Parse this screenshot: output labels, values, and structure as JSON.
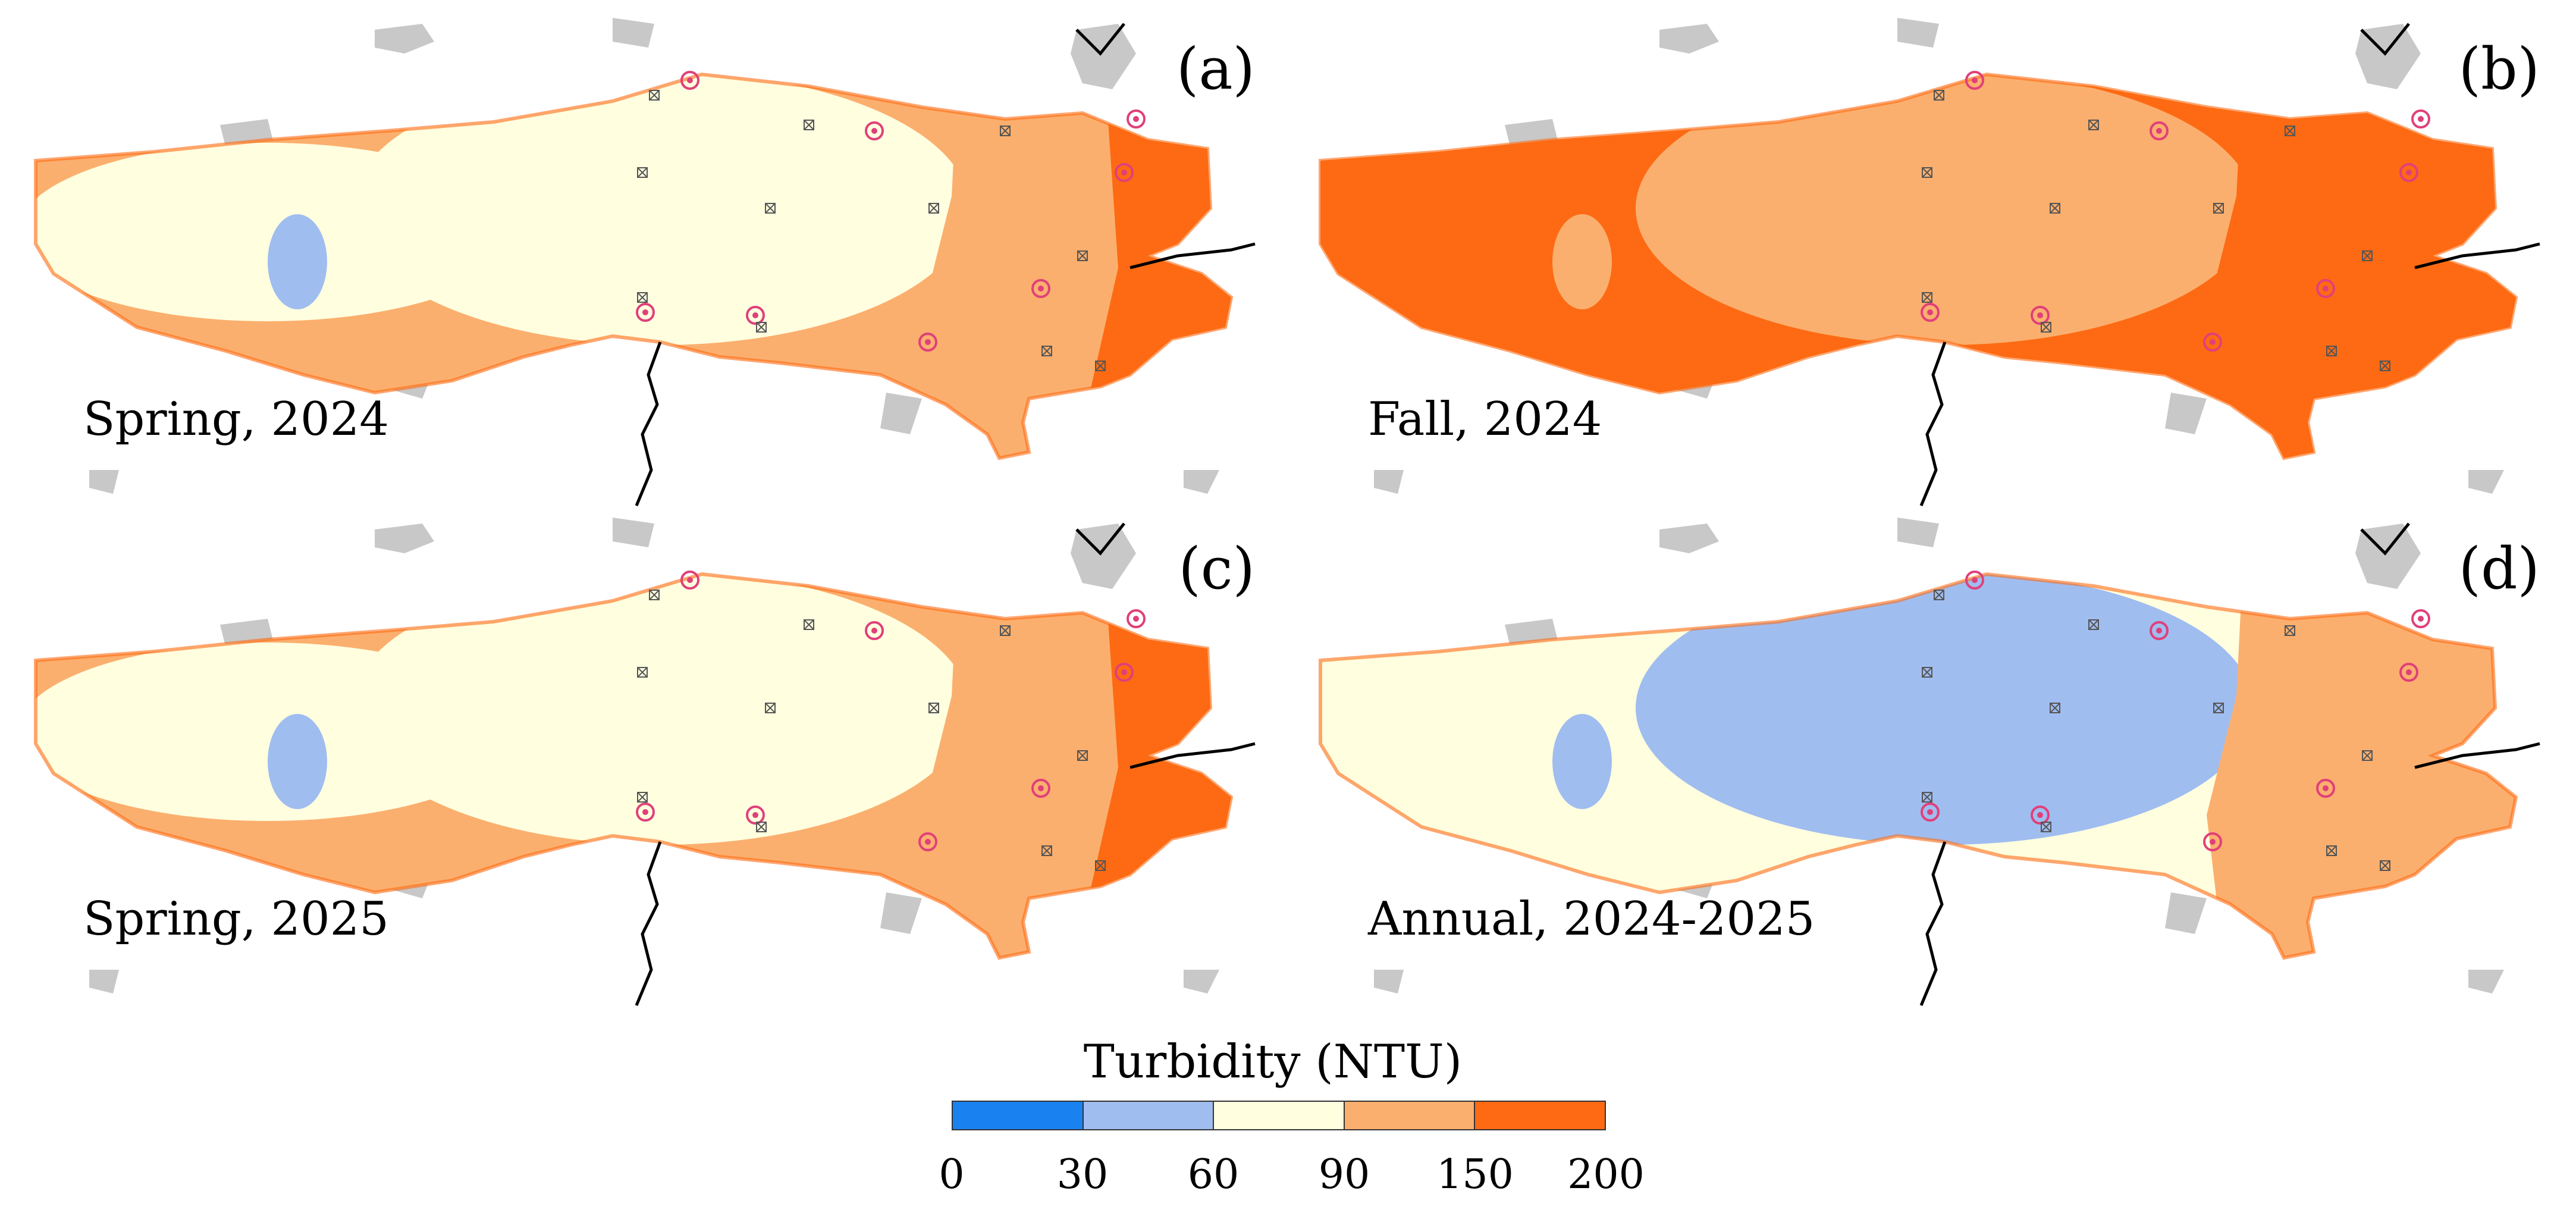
{
  "panels": [
    {
      "id": "a",
      "label": "(a)",
      "caption": "Spring, 2024",
      "zones": {
        "west": "#ffffe0",
        "center": "#ffffe0",
        "east": "#fbaf6e",
        "tip": "#fd6a13",
        "rim": "#fbaf6e",
        "patch": "#a0bdf0"
      }
    },
    {
      "id": "b",
      "label": "(b)",
      "caption": "Fall, 2024",
      "zones": {
        "west": "#fd6a13",
        "center": "#fbaf6e",
        "east": "#fd6a13",
        "tip": "#fd6a13",
        "rim": "#fd6a13",
        "patch": "#fbaf6e"
      }
    },
    {
      "id": "c",
      "label": "(c)",
      "caption": "Spring, 2025",
      "zones": {
        "west": "#ffffe0",
        "center": "#ffffe0",
        "east": "#fbaf6e",
        "tip": "#fd6a13",
        "rim": "#fbaf6e",
        "patch": "#a0bdf0"
      }
    },
    {
      "id": "d",
      "label": "(d)",
      "caption": "Annual, 2024-2025",
      "zones": {
        "west": "#ffffe0",
        "center": "#a0bdf0",
        "east": "#fbaf6e",
        "tip": "#fbaf6e",
        "rim": "#ffffe0",
        "patch": "#a0bdf0"
      }
    }
  ],
  "legend": {
    "title": "Turbidity (NTU)",
    "classes": [
      {
        "range": [
          0,
          30
        ],
        "color": "#1a82f0"
      },
      {
        "range": [
          30,
          60
        ],
        "color": "#a0bdf0"
      },
      {
        "range": [
          60,
          90
        ],
        "color": "#ffffe0"
      },
      {
        "range": [
          90,
          150
        ],
        "color": "#fbaf6e"
      },
      {
        "range": [
          150,
          200
        ],
        "color": "#fd6a13"
      }
    ],
    "ticks": [
      "0",
      "30",
      "60",
      "90",
      "150",
      "200"
    ]
  },
  "colors": {
    "land": "#c8c8c8",
    "river": "#000000",
    "station_circle": "#e0407a",
    "station_cross": "#555555"
  }
}
